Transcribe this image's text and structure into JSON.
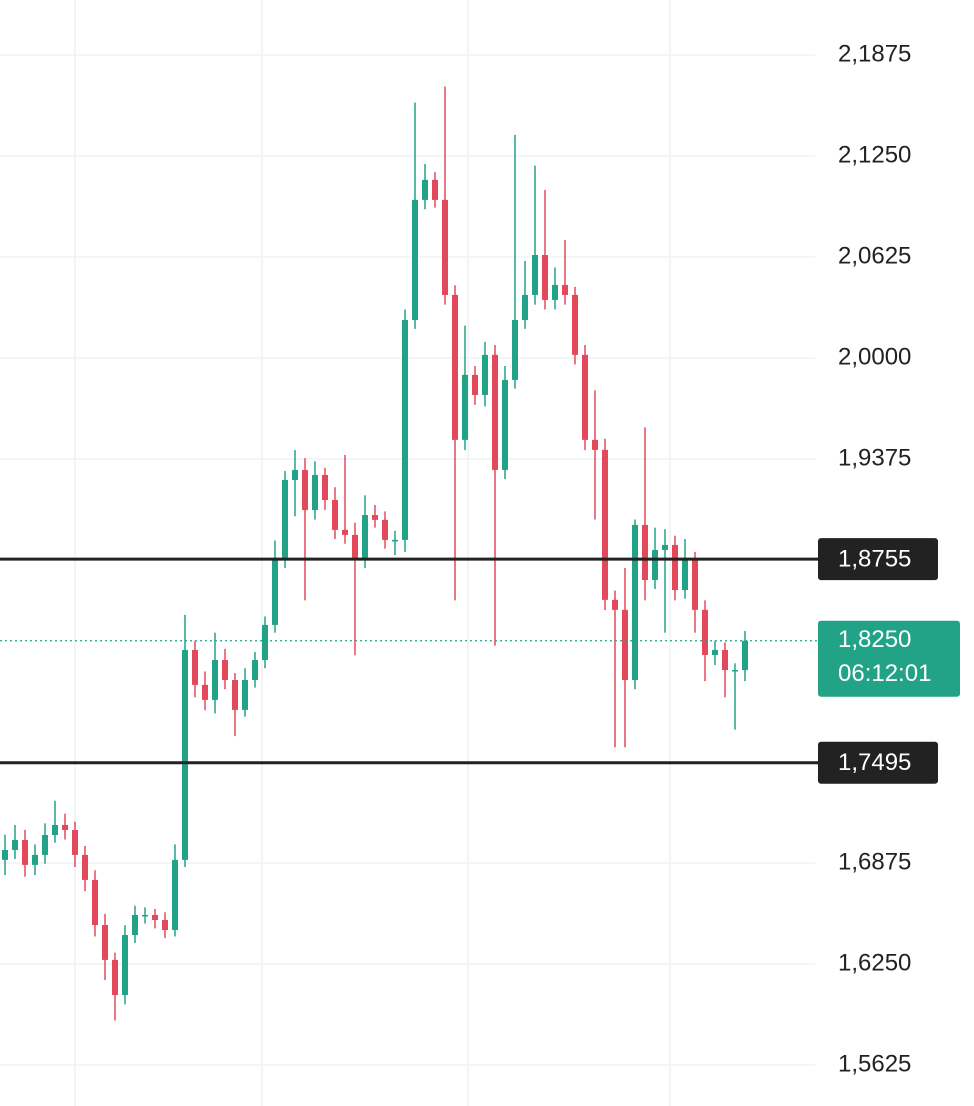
{
  "chart_data": {
    "type": "candlestick",
    "up_color": "#22a287",
    "down_color": "#e24a5c",
    "ylim": [
      1.5371,
      2.2215
    ],
    "yticks": [
      {
        "value": 2.1875,
        "label": "2,1875"
      },
      {
        "value": 2.125,
        "label": "2,1250"
      },
      {
        "value": 2.0625,
        "label": "2,0625"
      },
      {
        "value": 2.0,
        "label": "2,0000"
      },
      {
        "value": 1.9375,
        "label": "1,9375"
      },
      {
        "value": 1.6875,
        "label": "1,6875"
      },
      {
        "value": 1.625,
        "label": "1,6250"
      },
      {
        "value": 1.5625,
        "label": "1,5625"
      }
    ],
    "grid": true,
    "levels": [
      {
        "value": 1.8755,
        "label": "1,8755"
      },
      {
        "value": 1.7495,
        "label": "1,7495"
      }
    ],
    "current_price": {
      "value": 1.825,
      "label": "1,8250",
      "countdown": "06:12:01"
    },
    "open": [
      1.6894,
      1.6955,
      1.7017,
      1.6863,
      1.6925,
      1.7048,
      1.711,
      1.7079,
      1.6925,
      1.677,
      1.6491,
      1.6275,
      1.6058,
      1.6429,
      1.6553,
      1.6553,
      1.6522,
      1.646,
      1.6894,
      1.8193,
      1.7977,
      1.7884,
      1.8131,
      1.8007,
      1.7822,
      1.8007,
      1.8131,
      1.8348,
      1.875,
      1.9245,
      1.9307,
      1.9059,
      1.9276,
      1.9121,
      1.8936,
      1.8905,
      1.875,
      1.9028,
      1.8998,
      1.8874,
      1.8874,
      2.0235,
      2.0978,
      2.1102,
      2.0978,
      2.039,
      1.9493,
      1.9895,
      1.9771,
      2.0019,
      1.9307,
      1.9864,
      2.0235,
      2.039,
      2.0637,
      2.0359,
      2.0452,
      2.039,
      2.0019,
      1.9493,
      1.9431,
      1.8503,
      1.8441,
      1.8007,
      1.8967,
      1.8626,
      1.8812,
      1.8843,
      1.8564,
      1.875,
      1.8441,
      1.8162,
      1.8193,
      1.8069,
      1.8069
    ],
    "high": [
      1.705,
      1.711,
      1.708,
      1.699,
      1.712,
      1.726,
      1.718,
      1.713,
      1.698,
      1.683,
      1.656,
      1.632,
      1.649,
      1.661,
      1.66,
      1.659,
      1.657,
      1.699,
      1.841,
      1.825,
      1.806,
      1.83,
      1.82,
      1.805,
      1.808,
      1.818,
      1.84,
      1.887,
      1.93,
      1.943,
      1.938,
      1.936,
      1.932,
      1.92,
      1.94,
      1.898,
      1.915,
      1.909,
      1.905,
      1.893,
      2.03,
      2.158,
      2.12,
      2.115,
      2.168,
      2.045,
      2.02,
      1.995,
      2.01,
      2.008,
      1.995,
      2.138,
      2.06,
      2.119,
      2.104,
      2.056,
      2.073,
      2.044,
      2.008,
      1.98,
      1.95,
      1.856,
      1.87,
      1.9,
      1.957,
      1.895,
      1.894,
      1.89,
      1.888,
      1.88,
      1.85,
      1.825,
      1.824,
      1.811,
      1.831
    ],
    "low": [
      1.68,
      1.69,
      1.679,
      1.68,
      1.687,
      1.7,
      1.702,
      1.685,
      1.67,
      1.642,
      1.615,
      1.59,
      1.6,
      1.638,
      1.65,
      1.647,
      1.641,
      1.642,
      1.685,
      1.79,
      1.782,
      1.78,
      1.795,
      1.766,
      1.778,
      1.796,
      1.808,
      1.83,
      1.87,
      1.902,
      1.85,
      1.9,
      1.906,
      1.888,
      1.885,
      1.816,
      1.87,
      1.895,
      1.882,
      1.878,
      1.88,
      2.018,
      2.092,
      2.093,
      2.033,
      1.85,
      1.943,
      1.971,
      1.97,
      1.822,
      1.925,
      1.981,
      2.018,
      2.033,
      2.03,
      2.03,
      2.033,
      1.996,
      1.943,
      1.9,
      1.844,
      1.759,
      1.759,
      1.795,
      1.85,
      1.857,
      1.83,
      1.85,
      1.851,
      1.83,
      1.8,
      1.81,
      1.79,
      1.77,
      1.8
    ],
    "close": [
      1.6955,
      1.7017,
      1.6863,
      1.6925,
      1.7048,
      1.711,
      1.7079,
      1.6925,
      1.677,
      1.6491,
      1.6275,
      1.6058,
      1.6429,
      1.6553,
      1.6553,
      1.6522,
      1.646,
      1.6894,
      1.8193,
      1.7977,
      1.7884,
      1.8131,
      1.8007,
      1.7822,
      1.8007,
      1.8131,
      1.8348,
      1.875,
      1.9245,
      1.9307,
      1.9059,
      1.9276,
      1.9121,
      1.8936,
      1.8905,
      1.875,
      1.9028,
      1.8998,
      1.8874,
      1.8874,
      2.0235,
      2.0978,
      2.1102,
      2.0978,
      2.039,
      1.9493,
      1.9895,
      1.9771,
      2.0019,
      1.9307,
      1.9864,
      2.0235,
      2.039,
      2.0637,
      2.0359,
      2.0452,
      2.039,
      2.0019,
      1.9493,
      1.9431,
      1.8503,
      1.8441,
      1.8007,
      1.8967,
      1.8626,
      1.8812,
      1.8843,
      1.8564,
      1.875,
      1.8441,
      1.8162,
      1.8193,
      1.8069,
      1.8069,
      1.825
    ]
  }
}
